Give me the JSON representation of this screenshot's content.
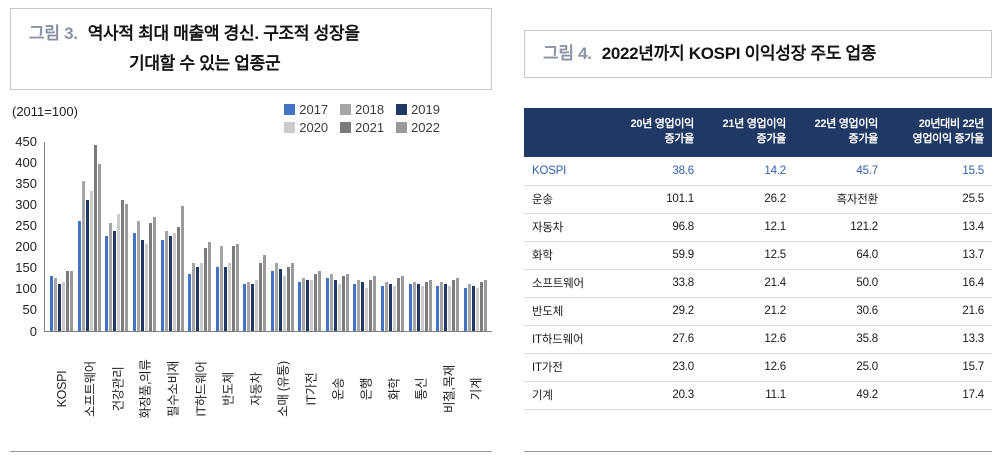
{
  "chart_data": [
    {
      "type": "bar",
      "figure_label": "그림 3.",
      "title_lines": [
        "역사적 최대 매출액 경신. 구조적 성장을",
        "기대할 수 있는 업종군"
      ],
      "title": "역사적 최대 매출액 경신. 구조적 성장을 기대할 수 있는 업종군",
      "unit_note": "(2011=100)",
      "ylim": [
        0,
        450
      ],
      "ytick_step": 50,
      "grid": false,
      "legend_position": "top-right",
      "categories": [
        "KOSPI",
        "소프트웨어",
        "건강관리",
        "화장품,의류",
        "필수소비재",
        "IT하드웨어",
        "반도체",
        "자동차",
        "소매 (유통)",
        "IT가전",
        "운송",
        "은행",
        "화학",
        "통신",
        "비철,목재",
        "기계"
      ],
      "series": [
        {
          "name": "2017",
          "color": "#4472C4",
          "values": [
            130,
            260,
            225,
            230,
            215,
            135,
            150,
            110,
            140,
            115,
            125,
            110,
            105,
            110,
            105,
            100
          ]
        },
        {
          "name": "2018",
          "color": "#A6A6A6",
          "values": [
            125,
            355,
            255,
            260,
            235,
            160,
            200,
            115,
            160,
            125,
            135,
            120,
            115,
            115,
            115,
            110
          ]
        },
        {
          "name": "2019",
          "color": "#1F3864",
          "values": [
            110,
            310,
            235,
            215,
            225,
            150,
            150,
            110,
            145,
            120,
            120,
            115,
            110,
            110,
            110,
            105
          ]
        },
        {
          "name": "2020",
          "color": "#CBCBCB",
          "values": [
            115,
            330,
            275,
            205,
            230,
            160,
            160,
            120,
            130,
            120,
            110,
            100,
            105,
            105,
            105,
            100
          ]
        },
        {
          "name": "2021",
          "color": "#7B7B7B",
          "values": [
            140,
            440,
            310,
            255,
            245,
            195,
            200,
            160,
            150,
            135,
            130,
            120,
            125,
            115,
            120,
            115
          ]
        },
        {
          "name": "2022",
          "color": "#9A9A9A",
          "values": [
            140,
            395,
            300,
            270,
            295,
            210,
            205,
            180,
            160,
            140,
            135,
            130,
            130,
            120,
            125,
            120
          ]
        }
      ]
    },
    {
      "type": "table",
      "figure_label": "그림 4.",
      "title": "2022년까지 KOSPI 이익성장 주도 업종",
      "header_bg": "#1F3864",
      "highlight_color": "#2E5FAD",
      "columns": [
        [
          ""
        ],
        [
          "20년 영업이익",
          "증가율"
        ],
        [
          "21년 영업이익",
          "증가율"
        ],
        [
          "22년 영업이익",
          "증가율"
        ],
        [
          "20년대비 22년",
          "영업이익 증가율"
        ]
      ],
      "rows": [
        {
          "label": "KOSPI",
          "values": [
            "38.6",
            "14.2",
            "45.7",
            "15.5"
          ],
          "highlight": true
        },
        {
          "label": "운송",
          "values": [
            "101.1",
            "26.2",
            "흑자전환",
            "25.5"
          ],
          "highlight": false
        },
        {
          "label": "자동차",
          "values": [
            "96.8",
            "12.1",
            "121.2",
            "13.4"
          ],
          "highlight": false
        },
        {
          "label": "화학",
          "values": [
            "59.9",
            "12.5",
            "64.0",
            "13.7"
          ],
          "highlight": false
        },
        {
          "label": "소프트웨어",
          "values": [
            "33.8",
            "21.4",
            "50.0",
            "16.4"
          ],
          "highlight": false
        },
        {
          "label": "반도체",
          "values": [
            "29.2",
            "21.2",
            "30.6",
            "21.6"
          ],
          "highlight": false
        },
        {
          "label": "IT하드웨어",
          "values": [
            "27.6",
            "12.6",
            "35.8",
            "13.3"
          ],
          "highlight": false
        },
        {
          "label": "IT가전",
          "values": [
            "23.0",
            "12.6",
            "25.0",
            "15.7"
          ],
          "highlight": false
        },
        {
          "label": "기계",
          "values": [
            "20.3",
            "11.1",
            "49.2",
            "17.4"
          ],
          "highlight": false
        }
      ]
    }
  ]
}
